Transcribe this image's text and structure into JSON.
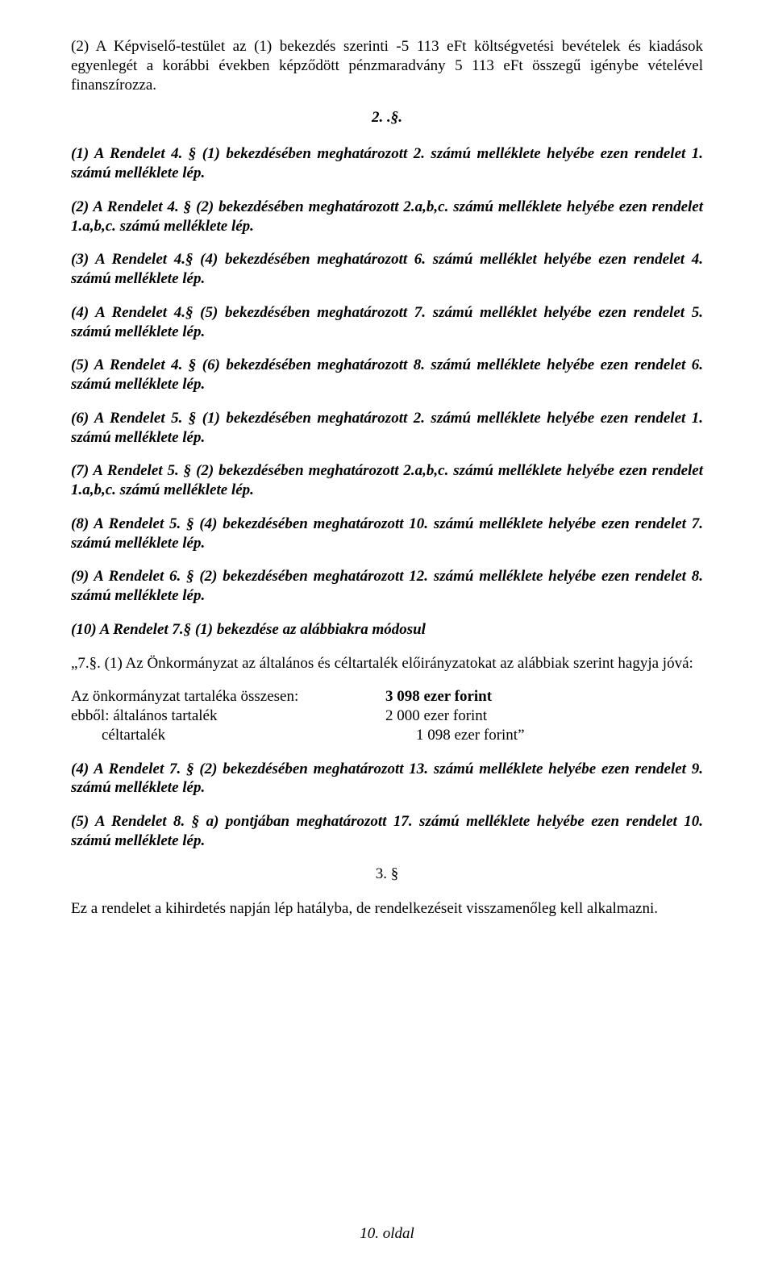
{
  "p_intro": "(2) A Képviselő-testület az (1) bekezdés szerinti -5 113 eFt költségvetési bevételek és kiadások egyenlegét a korábbi években képződött pénzmaradvány 5 113 eFt összegű igénybe vételével finanszírozza.",
  "section2": "2. .§.",
  "p1": "(1) A Rendelet 4. § (1) bekezdésében meghatározott 2. számú melléklete helyébe ezen rendelet 1. számú melléklete lép.",
  "p2": "(2) A Rendelet 4. § (2) bekezdésében meghatározott 2.a,b,c. számú melléklete helyébe ezen rendelet 1.a,b,c. számú melléklete lép.",
  "p3": "(3) A Rendelet 4.§ (4) bekezdésében meghatározott 6. számú melléklet helyébe ezen rendelet 4. számú melléklete lép.",
  "p4": "(4) A Rendelet 4.§ (5) bekezdésében meghatározott 7. számú melléklet helyébe ezen rendelet 5. számú melléklete lép.",
  "p5": "(5) A Rendelet 4. § (6) bekezdésében meghatározott 8. számú melléklete helyébe ezen rendelet 6. számú melléklete lép.",
  "p6": "(6) A Rendelet 5. § (1) bekezdésében meghatározott 2. számú melléklete helyébe ezen rendelet 1. számú melléklete lép.",
  "p7": "(7) A Rendelet 5. § (2) bekezdésében meghatározott 2.a,b,c. számú melléklete helyébe ezen rendelet 1.a,b,c. számú melléklete lép.",
  "p8": "(8) A Rendelet 5. § (4) bekezdésében meghatározott 10. számú melléklete helyébe ezen rendelet 7. számú melléklete lép.",
  "p9": "(9) A Rendelet 6. § (2) bekezdésében meghatározott 12. számú melléklete helyébe ezen rendelet 8. számú melléklete lép.",
  "p10": "(10) A Rendelet 7.§ (1) bekezdése az alábbiakra módosul",
  "p_quote": "„7.§. (1) Az Önkormányzat az általános és céltartalék előirányzatokat az alábbiak szerint hagyja jóvá:",
  "reserves": {
    "total_label": "Az önkormányzat tartaléka összesen:",
    "total_value": "3 098 ezer forint",
    "general_label": "ebből: általános tartalék",
    "general_value": "2 000 ezer forint",
    "target_label": "céltartalék",
    "target_value": "1 098 ezer forint”"
  },
  "p11": "(4) A Rendelet 7. § (2) bekezdésében meghatározott 13. számú melléklete helyébe ezen rendelet 9. számú melléklete lép.",
  "p12": "(5) A Rendelet 8. § a) pontjában meghatározott 17. számú melléklete helyébe ezen rendelet 10. számú melléklete lép.",
  "section3": "3. §",
  "p_final": "Ez a rendelet a kihirdetés napján lép hatályba, de rendelkezéseit visszamenőleg kell alkalmazni.",
  "footer": "10. oldal"
}
